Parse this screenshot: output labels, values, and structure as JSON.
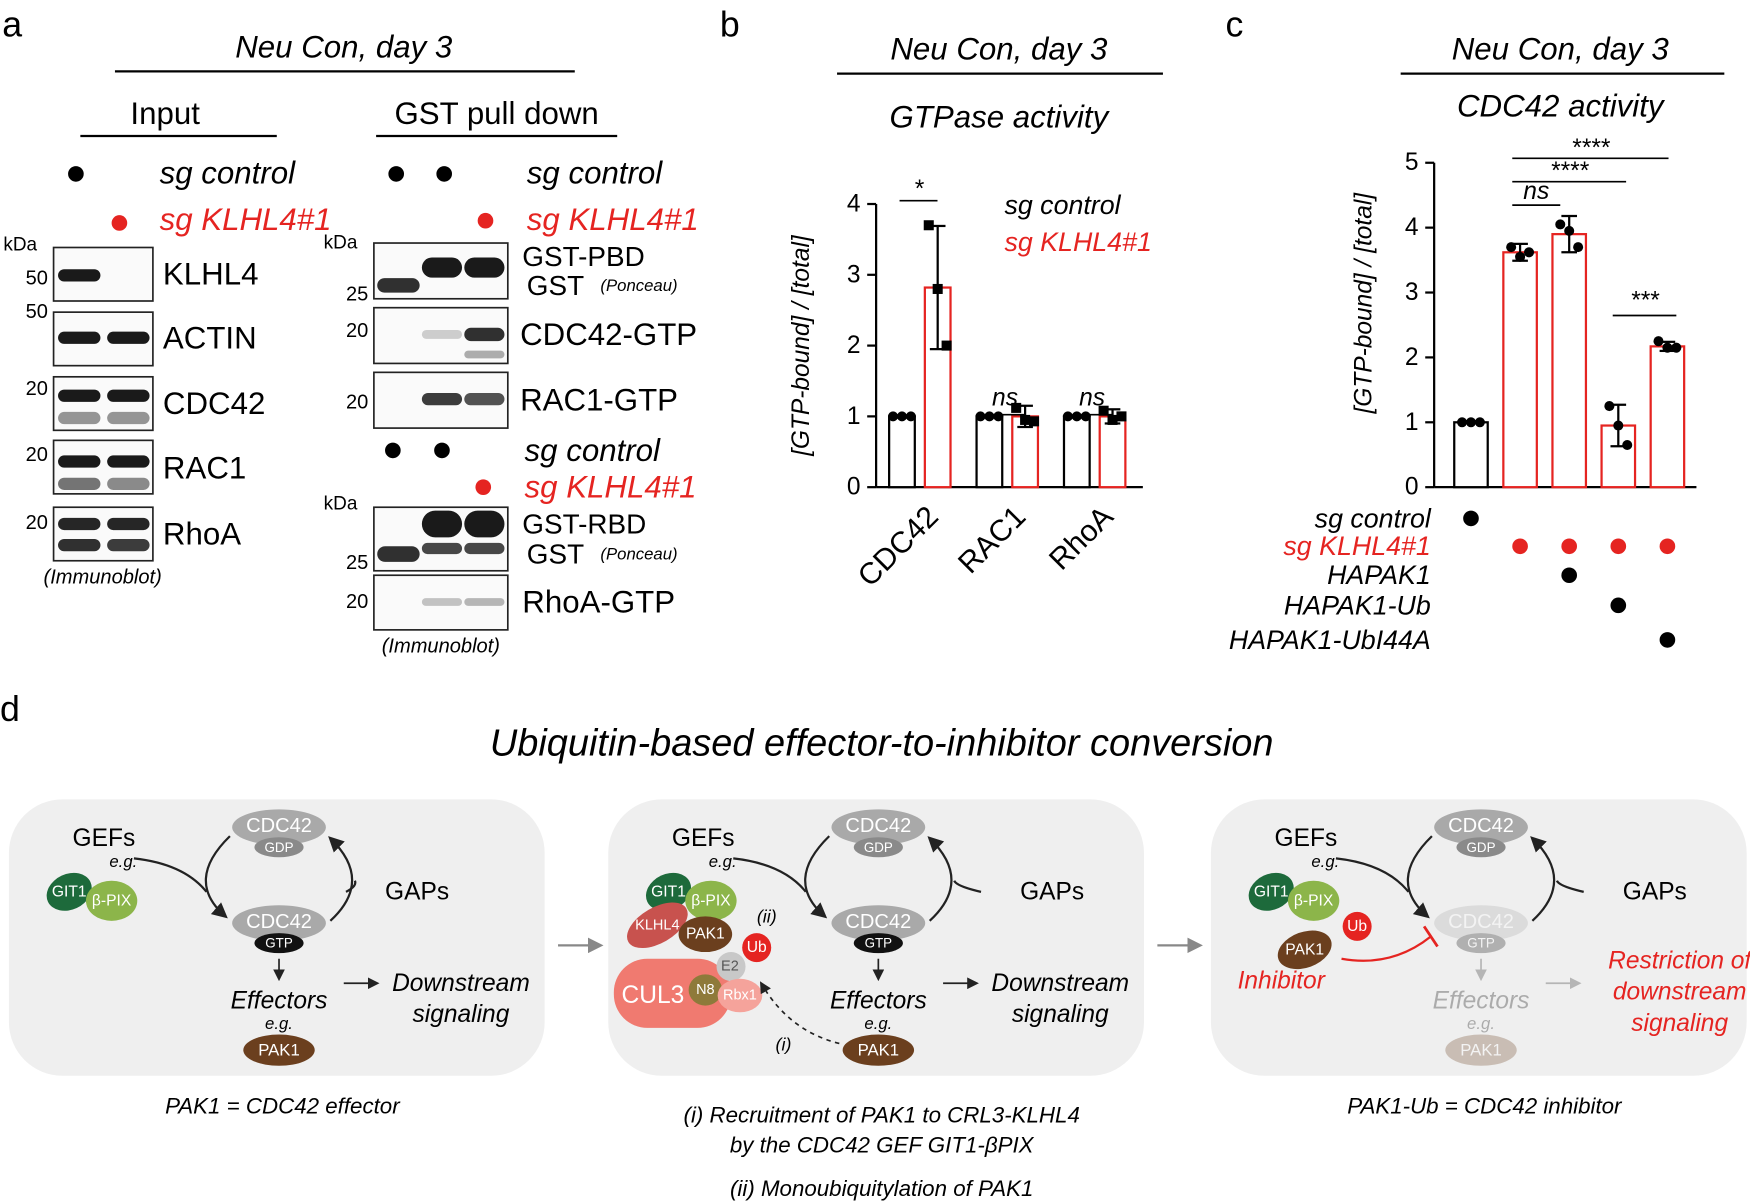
{
  "panel_labels": [
    "a",
    "b",
    "c",
    "d"
  ],
  "panel_a": {
    "title": "Neu Con, day 3",
    "input": "Input",
    "pulldown": "GST pull down",
    "sg_control": "sg control",
    "sg_klhl4": "sg KLHL4#1",
    "kda": "kDa",
    "input_blots": [
      {
        "mw": "50",
        "label": "KLHL4"
      },
      {
        "mw": "50",
        "label": "ACTIN"
      },
      {
        "mw": "20",
        "label": "CDC42"
      },
      {
        "mw": "20",
        "label": "RAC1"
      },
      {
        "mw": "20",
        "label": "RhoA"
      }
    ],
    "input_note": "(Immunoblot)",
    "pbd_panel": {
      "gst_pbd": "GST-PBD",
      "gst": "GST",
      "ponceau": "(Ponceau)",
      "mw_gst": "25",
      "cdc42_mw": "20",
      "cdc42": "CDC42-GTP",
      "rac1_mw": "20",
      "rac1": "RAC1-GTP"
    },
    "rbd_panel": {
      "gst_rbd": "GST-RBD",
      "gst": "GST",
      "ponceau": "(Ponceau)",
      "mw_gst": "25",
      "rhoa_mw": "20",
      "rhoa": "RhoA-GTP"
    },
    "pulldown_note": "(Immunoblot)"
  },
  "chart_data": [
    {
      "type": "bar",
      "title": "Neu Con, day 3",
      "subtitle": "GTPase activity",
      "y_label": "[GTP-bound] / [total]",
      "categories": [
        "CDC42",
        "RAC1",
        "RhoA"
      ],
      "series": [
        {
          "name": "sg control",
          "color": "#000000",
          "values": [
            1,
            1,
            1
          ],
          "errors": [
            0,
            0,
            0
          ],
          "points": [
            [
              1,
              1,
              1
            ],
            [
              1,
              1,
              1
            ],
            [
              1,
              1,
              1
            ]
          ]
        },
        {
          "name": "sg KLHL4#1",
          "color": "#e52421",
          "values": [
            2.82,
            1.0,
            1.0
          ],
          "errors": [
            0.87,
            0.15,
            0.1
          ],
          "points": [
            [
              3.7,
              2.8,
              2.0
            ],
            [
              1.12,
              0.95,
              0.93
            ],
            [
              1.08,
              0.95,
              1.0
            ]
          ]
        }
      ],
      "ylim": [
        0,
        4
      ],
      "yticks": [
        0,
        1,
        2,
        3,
        4
      ],
      "annotations": [
        "*",
        "ns",
        "ns"
      ]
    },
    {
      "type": "bar",
      "title": "Neu Con, day 3",
      "subtitle": "CDC42 activity",
      "y_label": "[GTP-bound] / [total]",
      "categories": [
        null,
        null,
        null,
        null,
        null
      ],
      "values": [
        1,
        3.62,
        3.9,
        0.95,
        2.17
      ],
      "colors": [
        "#000000",
        "#e52421",
        "#e52421",
        "#e52421",
        "#e52421"
      ],
      "errors": [
        0,
        0.13,
        0.28,
        0.32,
        0.07
      ],
      "points": [
        [
          1,
          1,
          1
        ],
        [
          3.7,
          3.55,
          3.62
        ],
        [
          4.05,
          3.95,
          3.7
        ],
        [
          1.25,
          0.95,
          0.65
        ],
        [
          2.25,
          2.15,
          2.15
        ]
      ],
      "ylim": [
        0,
        5
      ],
      "yticks": [
        0,
        1,
        2,
        3,
        4,
        5
      ],
      "annotations": [
        "****",
        "****",
        "ns",
        "***"
      ],
      "conditions": [
        {
          "label": "sg control",
          "color": "#000000",
          "present": [
            true,
            false,
            false,
            false,
            false
          ]
        },
        {
          "label": "sg KLHL4#1",
          "color": "#e52421",
          "present": [
            false,
            true,
            true,
            true,
            true
          ]
        },
        {
          "label": "HAPAK1",
          "color": "#000000",
          "present": [
            false,
            false,
            true,
            false,
            false
          ]
        },
        {
          "label": "HAPAK1-Ub",
          "color": "#000000",
          "present": [
            false,
            false,
            false,
            true,
            false
          ]
        },
        {
          "label": "HAPAK1-UbI44A",
          "color": "#000000",
          "present": [
            false,
            false,
            false,
            false,
            true
          ]
        }
      ]
    }
  ],
  "panel_d": {
    "title": "Ubiquitin-based effector-to-inhibitor conversion",
    "boxes": [
      {
        "gefs": "GEFs",
        "eg": "e.g.",
        "git1": "GIT1",
        "bpix": "β-PIX",
        "cdc42_gdp": "CDC42",
        "gdp": "GDP",
        "cdc42_gtp": "CDC42",
        "gtp": "GTP",
        "gaps": "GAPs",
        "effectors": "Effectors",
        "eg_effectors": "e.g.",
        "pak1": "PAK1",
        "downstream": [
          "Downstream",
          "signaling"
        ],
        "caption": [
          "PAK1 = CDC42 effector"
        ]
      },
      {
        "gefs": "GEFs",
        "eg": "e.g.",
        "git1": "GIT1",
        "bpix": "β-PIX",
        "cdc42_gdp": "CDC42",
        "gdp": "GDP",
        "cdc42_gtp": "CDC42",
        "gtp": "GTP",
        "gaps": "GAPs",
        "effectors": "Effectors",
        "eg_effectors": "e.g.",
        "pak1": "PAK1",
        "downstream": [
          "Downstream",
          "signaling"
        ],
        "klhl4": "KLHL4",
        "pak1_bound": "PAK1",
        "ub": "Ub",
        "step_ii": "(ii)",
        "e2": "E2",
        "n8": "N8",
        "rbx1": "Rbx1",
        "cul3": "CUL3",
        "step_i": "(i)",
        "caption": [
          "(i) Recruitment of PAK1 to CRL3-KLHL4",
          "by the CDC42 GEF GIT1-βPIX",
          "(ii) Monoubiquitylation of PAK1"
        ]
      },
      {
        "gefs": "GEFs",
        "eg": "e.g.",
        "git1": "GIT1",
        "bpix": "β-PIX",
        "cdc42_gdp": "CDC42",
        "gdp": "GDP",
        "cdc42_gtp": "CDC42",
        "gtp": "GTP",
        "gaps": "GAPs",
        "effectors": "Effectors",
        "eg_effectors": "e.g.",
        "pak1": "PAK1",
        "downstream": [
          "Restriction of",
          "downstream",
          "signaling"
        ],
        "pak1_bound": "PAK1",
        "ub": "Ub",
        "inhibitor": "Inhibitor",
        "caption": [
          "PAK1-Ub = CDC42 inhibitor"
        ]
      }
    ]
  }
}
